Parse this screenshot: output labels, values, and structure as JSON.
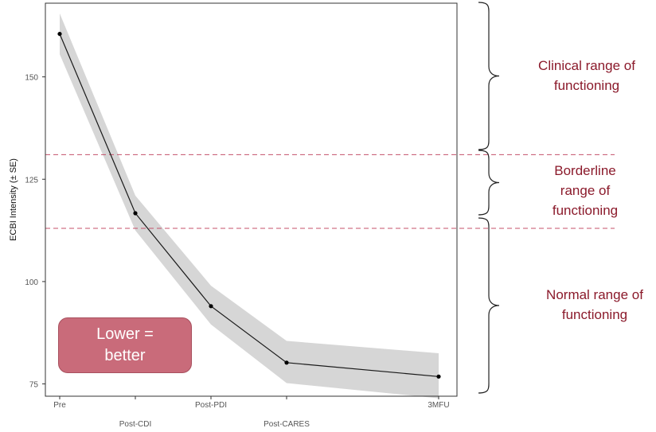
{
  "chart_data": {
    "type": "line",
    "title": "",
    "xlabel": "",
    "ylabel": "ECBI Intensity (± SE)",
    "categories": [
      "Pre",
      "Post-CDI",
      "Post-PDI",
      "Post-CARES",
      "3MFU"
    ],
    "series": [
      {
        "values": [
          160.5,
          116.7,
          94.0,
          80.2,
          76.8
        ],
        "se_low": [
          155.5,
          112.5,
          89.5,
          75.2,
          71.5
        ],
        "se_high": [
          165.5,
          121.0,
          99.0,
          85.5,
          82.5
        ]
      }
    ],
    "yticks": [
      75,
      100,
      125,
      150
    ],
    "ylim": [
      72,
      168
    ],
    "reference_lines": [
      131,
      113
    ],
    "grid": false,
    "colors": {
      "line": "#1a1a1a",
      "band": "#d6d6d6",
      "reference": "#c4506a",
      "frame": "#333333"
    }
  },
  "annotations": {
    "ranges": [
      {
        "label": "Clinical range of\nfunctioning"
      },
      {
        "label": "Borderline\nrange of\nfunctioning"
      },
      {
        "label": "Normal range of\nfunctioning"
      }
    ],
    "callout": "Lower =\nbetter"
  }
}
